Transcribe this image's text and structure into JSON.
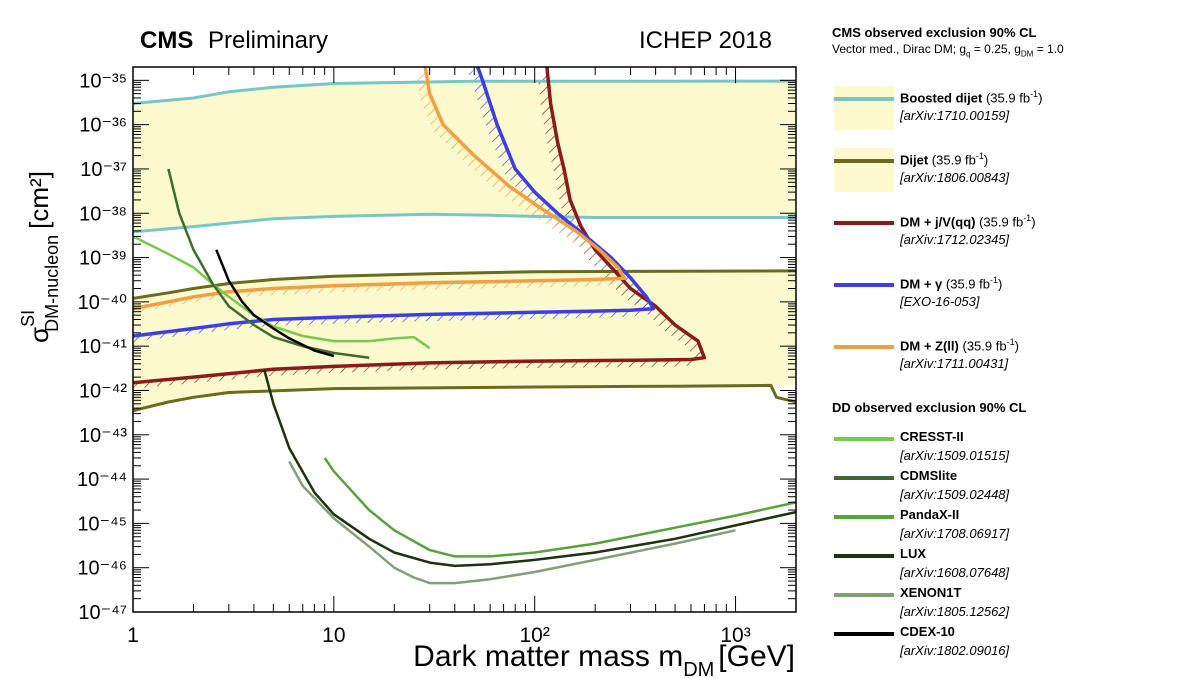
{
  "header": {
    "experiment": "CMS",
    "status": "Preliminary",
    "conference": "ICHEP 2018"
  },
  "chart_data": {
    "type": "line",
    "xscale": "log",
    "yscale": "log",
    "xlabel": "Dark matter mass m",
    "xlabel_sub": "DM",
    "xlabel_unit": "[GeV]",
    "ylabel": "σ",
    "ylabel_sup": "SI",
    "ylabel_sub": "DM-nucleon",
    "ylabel_unit": "[cm²]",
    "xlim": [
      1,
      2000
    ],
    "ylim": [
      1e-47,
      2e-35
    ],
    "x_tick_labels": [
      {
        "value": 1,
        "label": "1"
      },
      {
        "value": 10,
        "label": "10"
      },
      {
        "value": 100,
        "label": "10²"
      },
      {
        "value": 1000,
        "label": "10³"
      }
    ],
    "y_tick_labels": [
      {
        "value": 1e-35,
        "label": "10⁻³⁵"
      },
      {
        "value": 1e-36,
        "label": "10⁻³⁶"
      },
      {
        "value": 1e-37,
        "label": "10⁻³⁷"
      },
      {
        "value": 1e-38,
        "label": "10⁻³⁸"
      },
      {
        "value": 1e-39,
        "label": "10⁻³⁹"
      },
      {
        "value": 1e-40,
        "label": "10⁻⁴⁰"
      },
      {
        "value": 1e-41,
        "label": "10⁻⁴¹"
      },
      {
        "value": 1e-42,
        "label": "10⁻⁴²"
      },
      {
        "value": 1e-43,
        "label": "10⁻⁴³"
      },
      {
        "value": 1e-44,
        "label": "10⁻⁴⁴"
      },
      {
        "value": 1e-45,
        "label": "10⁻⁴⁵"
      },
      {
        "value": 1e-46,
        "label": "10⁻⁴⁶"
      },
      {
        "value": 1e-47,
        "label": "10⁻⁴⁷"
      }
    ],
    "fill_color": "#fbf9ce",
    "fill_regions": [
      {
        "name": "Boosted dijet",
        "points": [
          [
            1,
            3e-36
          ],
          [
            2,
            4e-36
          ],
          [
            3,
            5.5e-36
          ],
          [
            5,
            7e-36
          ],
          [
            10,
            8.5e-36
          ],
          [
            50,
            9.5e-36
          ],
          [
            2000,
            9.6e-36
          ],
          [
            2000,
            8e-39
          ],
          [
            200,
            8e-39
          ],
          [
            100,
            8.5e-39
          ],
          [
            60,
            9e-39
          ],
          [
            30,
            9.5e-39
          ],
          [
            10,
            8.5e-39
          ],
          [
            5,
            7.5e-39
          ],
          [
            3,
            6e-39
          ],
          [
            2,
            5e-39
          ],
          [
            1,
            3.8e-39
          ]
        ]
      },
      {
        "name": "Dijet",
        "points": [
          [
            1,
            1.2e-40
          ],
          [
            1.5,
            1.6e-40
          ],
          [
            2,
            2e-40
          ],
          [
            3,
            2.6e-40
          ],
          [
            5,
            3.2e-40
          ],
          [
            10,
            3.8e-40
          ],
          [
            30,
            4.3e-40
          ],
          [
            100,
            4.8e-40
          ],
          [
            2000,
            5e-40
          ],
          [
            2000,
            1.3e-42
          ],
          [
            500,
            1.25e-42
          ],
          [
            100,
            1.2e-42
          ],
          [
            10,
            1.1e-42
          ],
          [
            3,
            9e-43
          ],
          [
            2,
            7e-43
          ],
          [
            1.5,
            5.5e-43
          ],
          [
            1,
            3.5e-43
          ]
        ]
      }
    ],
    "series": [
      {
        "name": "Boosted dijet",
        "color": "#78c6c6",
        "points": [
          [
            1,
            3e-36
          ],
          [
            2,
            4e-36
          ],
          [
            3,
            5.5e-36
          ],
          [
            5,
            7e-36
          ],
          [
            10,
            8.5e-36
          ],
          [
            50,
            9.5e-36
          ],
          [
            2000,
            9.6e-36
          ]
        ]
      },
      {
        "name": "Boosted dijet",
        "color": "#78c6c6",
        "points": [
          [
            1,
            3.8e-39
          ],
          [
            2,
            5e-39
          ],
          [
            3,
            6e-39
          ],
          [
            5,
            7.5e-39
          ],
          [
            10,
            8.5e-39
          ],
          [
            30,
            9.5e-39
          ],
          [
            60,
            9e-39
          ],
          [
            100,
            8.5e-39
          ],
          [
            200,
            8e-39
          ],
          [
            2000,
            8e-39
          ]
        ]
      },
      {
        "name": "Dijet",
        "color": "#6b6b1e",
        "points": [
          [
            1,
            1.2e-40
          ],
          [
            1.5,
            1.6e-40
          ],
          [
            2,
            2e-40
          ],
          [
            3,
            2.6e-40
          ],
          [
            5,
            3.2e-40
          ],
          [
            10,
            3.8e-40
          ],
          [
            30,
            4.3e-40
          ],
          [
            100,
            4.8e-40
          ],
          [
            2000,
            5e-40
          ]
        ]
      },
      {
        "name": "Dijet",
        "color": "#6b6b1e",
        "points": [
          [
            1,
            3.5e-43
          ],
          [
            1.5,
            5.5e-43
          ],
          [
            2,
            7e-43
          ],
          [
            3,
            9e-43
          ],
          [
            10,
            1.1e-42
          ],
          [
            100,
            1.2e-42
          ],
          [
            500,
            1.25e-42
          ],
          [
            1500,
            1.3e-42
          ],
          [
            1600,
            7e-43
          ],
          [
            2000,
            5.5e-43
          ]
        ]
      },
      {
        "name": "DM + j/V(qq)",
        "color": "#8b1a1a",
        "points": [
          [
            1,
            1.5e-42
          ],
          [
            2,
            2e-42
          ],
          [
            5,
            3e-42
          ],
          [
            10,
            3.5e-42
          ],
          [
            30,
            4.2e-42
          ],
          [
            100,
            4.6e-42
          ],
          [
            300,
            4.8e-42
          ],
          [
            600,
            5e-42
          ],
          [
            700,
            5.5e-42
          ],
          [
            650,
            1.3e-41
          ],
          [
            500,
            3e-41
          ],
          [
            400,
            8e-41
          ],
          [
            300,
            2e-40
          ],
          [
            250,
            5e-40
          ],
          [
            200,
            1.5e-39
          ],
          [
            170,
            5e-39
          ],
          [
            150,
            2e-38
          ],
          [
            140,
            1e-37
          ],
          [
            130,
            4e-37
          ],
          [
            120,
            3e-36
          ],
          [
            115,
            2e-35
          ]
        ]
      },
      {
        "name": "DM + γ",
        "color": "#3d3de8",
        "points": [
          [
            1,
            1.7e-41
          ],
          [
            2,
            2.5e-41
          ],
          [
            3,
            3.2e-41
          ],
          [
            5,
            4e-41
          ],
          [
            10,
            4.5e-41
          ],
          [
            30,
            5.2e-41
          ],
          [
            100,
            5.8e-41
          ],
          [
            200,
            6.2e-41
          ],
          [
            300,
            6.5e-41
          ],
          [
            390,
            7e-41
          ],
          [
            360,
            1.3e-40
          ],
          [
            300,
            3.5e-40
          ],
          [
            240,
            1e-39
          ],
          [
            180,
            3e-39
          ],
          [
            130,
            1e-38
          ],
          [
            100,
            3e-38
          ],
          [
            80,
            1e-37
          ],
          [
            65,
            1e-36
          ],
          [
            55,
            1e-35
          ],
          [
            52,
            2e-35
          ]
        ]
      },
      {
        "name": "DM + Z(ll)",
        "color": "#f0a040",
        "points": [
          [
            1,
            7e-41
          ],
          [
            1.5,
            1e-40
          ],
          [
            2,
            1.3e-40
          ],
          [
            3,
            1.7e-40
          ],
          [
            5,
            2e-40
          ],
          [
            10,
            2.3e-40
          ],
          [
            30,
            2.7e-40
          ],
          [
            100,
            3e-40
          ],
          [
            200,
            3.2e-40
          ],
          [
            280,
            3.4e-40
          ],
          [
            260,
            6e-40
          ],
          [
            210,
            1.5e-39
          ],
          [
            160,
            4e-39
          ],
          [
            110,
            1.2e-38
          ],
          [
            75,
            4e-38
          ],
          [
            50,
            2e-37
          ],
          [
            35,
            1e-36
          ],
          [
            30,
            5e-36
          ],
          [
            28.5,
            2e-35
          ]
        ]
      },
      {
        "name": "CRESST-II",
        "color": "#78c850",
        "points": [
          [
            1,
            3e-39
          ],
          [
            1.5,
            1.2e-39
          ],
          [
            2,
            6e-40
          ],
          [
            2.5,
            2.5e-40
          ],
          [
            3,
            1.3e-40
          ],
          [
            4,
            5e-41
          ],
          [
            5,
            2.8e-41
          ],
          [
            7,
            1.7e-41
          ],
          [
            10,
            1.3e-41
          ],
          [
            15,
            1.3e-41
          ],
          [
            20,
            1.5e-41
          ],
          [
            25,
            1.6e-41
          ],
          [
            30,
            9e-42
          ]
        ]
      },
      {
        "name": "CDMSlite",
        "color": "#3d6b2e",
        "points": [
          [
            1.5,
            1e-37
          ],
          [
            1.7,
            1e-38
          ],
          [
            2,
            1.5e-39
          ],
          [
            2.5,
            2.5e-40
          ],
          [
            3,
            8e-41
          ],
          [
            4,
            3e-41
          ],
          [
            5,
            1.6e-41
          ],
          [
            7,
            1e-41
          ],
          [
            10,
            7e-42
          ],
          [
            15,
            5.5e-42
          ]
        ]
      },
      {
        "name": "PandaX-II",
        "color": "#5aa03c",
        "points": [
          [
            9,
            3e-44
          ],
          [
            10,
            1.5e-44
          ],
          [
            15,
            2e-45
          ],
          [
            20,
            7e-46
          ],
          [
            30,
            2.5e-46
          ],
          [
            40,
            1.8e-46
          ],
          [
            60,
            1.8e-46
          ],
          [
            100,
            2.2e-46
          ],
          [
            200,
            3.5e-46
          ],
          [
            500,
            8e-46
          ],
          [
            1000,
            1.5e-45
          ],
          [
            2000,
            3e-45
          ]
        ]
      },
      {
        "name": "LUX",
        "color": "#1e3210",
        "points": [
          [
            4.5,
            3e-42
          ],
          [
            5,
            5e-43
          ],
          [
            6,
            5e-44
          ],
          [
            8,
            5e-45
          ],
          [
            10,
            1.6e-45
          ],
          [
            15,
            4.5e-46
          ],
          [
            20,
            2.2e-46
          ],
          [
            30,
            1.3e-46
          ],
          [
            40,
            1.1e-46
          ],
          [
            60,
            1.2e-46
          ],
          [
            100,
            1.5e-46
          ],
          [
            200,
            2.2e-46
          ],
          [
            500,
            4.5e-46
          ],
          [
            1000,
            9e-46
          ],
          [
            2000,
            1.8e-45
          ]
        ]
      },
      {
        "name": "XENON1T",
        "color": "#82a078",
        "points": [
          [
            6,
            2.5e-44
          ],
          [
            7,
            7e-45
          ],
          [
            10,
            1.3e-45
          ],
          [
            15,
            3e-46
          ],
          [
            20,
            1e-46
          ],
          [
            25,
            6e-47
          ],
          [
            30,
            4.5e-47
          ],
          [
            40,
            4.5e-47
          ],
          [
            60,
            5.5e-47
          ],
          [
            100,
            8e-47
          ],
          [
            200,
            1.5e-46
          ],
          [
            500,
            3.5e-46
          ],
          [
            1000,
            7e-46
          ]
        ]
      },
      {
        "name": "CDEX-10",
        "color": "#000000",
        "points": [
          [
            2.6,
            1.5e-39
          ],
          [
            3,
            3e-40
          ],
          [
            3.5,
            1e-40
          ],
          [
            4,
            5e-41
          ],
          [
            5,
            2.5e-41
          ],
          [
            6,
            1.5e-41
          ],
          [
            8,
            8e-42
          ],
          [
            10,
            6e-42
          ]
        ]
      }
    ],
    "hatch_regions": [
      {
        "name": "DM + j/V(qq)",
        "color": "#8b1a1a"
      },
      {
        "name": "DM + γ",
        "color": "#3d3de8"
      },
      {
        "name": "DM + Z(ll)",
        "color": "#f0a040"
      }
    ]
  },
  "legend": {
    "cms_title": "CMS observed exclusion 90% CL",
    "cms_subtitle": "Vector med., Dirac DM; g",
    "cms_subtitle_q": "q",
    "cms_subtitle_mid": "= 0.25, g",
    "cms_subtitle_dm": "DM",
    "cms_subtitle_end": "= 1.0",
    "dd_title": "DD observed exclusion 90% CL",
    "lumi_prefix": "(35.9 fb",
    "lumi_exp": "-1",
    "lumi_suffix": ")",
    "cms_entries": [
      {
        "name": "Boosted dijet",
        "ref": "[arXiv:1710.00159]",
        "color": "#78c6c6",
        "fill": "#fbf9ce",
        "bold": true
      },
      {
        "name": "Dijet",
        "ref": "[arXiv:1806.00843]",
        "color": "#6b6b1e",
        "fill": "#fbf9ce",
        "bold": true
      },
      {
        "name": "DM + j/V(qq)",
        "ref": "[arXiv:1712.02345]",
        "color": "#8b1a1a",
        "fill": "",
        "bold": true
      },
      {
        "name": "DM + γ",
        "ref": "[EXO-16-053]",
        "color": "#3d3de8",
        "fill": "",
        "bold": true
      },
      {
        "name": "DM + Z(ll)",
        "ref": "[arXiv:1711.00431]",
        "color": "#f0a040",
        "fill": "",
        "bold": true
      }
    ],
    "dd_entries": [
      {
        "name": "CRESST-II",
        "ref": "[arXiv:1509.01515]",
        "color": "#78c850"
      },
      {
        "name": "CDMSlite",
        "ref": "[arXiv:1509.02448]",
        "color": "#3d6b2e"
      },
      {
        "name": "PandaX-II",
        "ref": "[arXiv:1708.06917]",
        "color": "#5aa03c"
      },
      {
        "name": "LUX",
        "ref": "[arXiv:1608.07648]",
        "color": "#1e3210"
      },
      {
        "name": "XENON1T",
        "ref": "[arXiv:1805.12562]",
        "color": "#82a078"
      },
      {
        "name": "CDEX-10",
        "ref": "[arXiv:1802.09016]",
        "color": "#000000"
      }
    ]
  }
}
